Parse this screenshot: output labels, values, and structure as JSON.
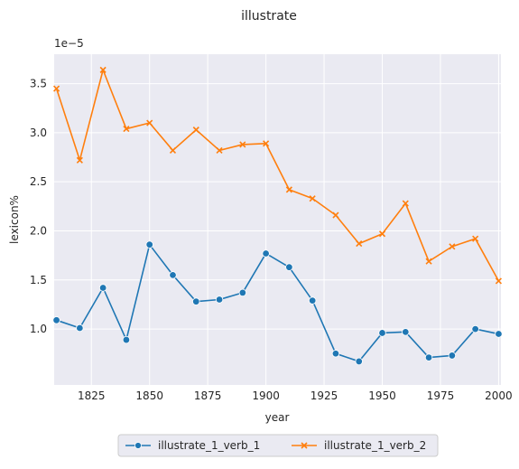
{
  "chart_data": {
    "type": "line",
    "title": "illustrate",
    "xlabel": "year",
    "ylabel": "lexicon%",
    "y_scale_label": "1e−5",
    "xlim": [
      1809,
      2001
    ],
    "ylim": [
      0.43,
      3.8
    ],
    "x_ticks": [
      1825,
      1850,
      1875,
      1900,
      1925,
      1950,
      1975,
      2000
    ],
    "x_tick_labels": [
      "1825",
      "1850",
      "1875",
      "1900",
      "1925",
      "1950",
      "1975",
      "2000"
    ],
    "y_ticks": [
      1.0,
      1.5,
      2.0,
      2.5,
      3.0,
      3.5
    ],
    "y_tick_labels": [
      "1.0",
      "1.5",
      "2.0",
      "2.5",
      "3.0",
      "3.5"
    ],
    "grid": true,
    "legend_position": "bottom-center",
    "x": [
      1810,
      1820,
      1830,
      1840,
      1850,
      1860,
      1870,
      1880,
      1890,
      1900,
      1910,
      1920,
      1930,
      1940,
      1950,
      1960,
      1970,
      1980,
      1990,
      2000
    ],
    "series": [
      {
        "name": "illustrate_1_verb_1",
        "color": "#1f77b4",
        "marker": "circle",
        "values": [
          1.09,
          1.01,
          1.42,
          0.89,
          1.86,
          1.55,
          1.28,
          1.3,
          1.37,
          1.77,
          1.63,
          1.29,
          0.75,
          0.67,
          0.96,
          0.97,
          0.71,
          0.73,
          1.0,
          0.95
        ]
      },
      {
        "name": "illustrate_1_verb_2",
        "color": "#ff7f0e",
        "marker": "x",
        "values": [
          3.45,
          2.72,
          3.64,
          3.04,
          3.1,
          2.82,
          3.03,
          2.82,
          2.88,
          2.89,
          2.42,
          2.33,
          2.16,
          1.87,
          1.97,
          2.28,
          1.69,
          1.84,
          1.92,
          1.49
        ]
      }
    ]
  }
}
